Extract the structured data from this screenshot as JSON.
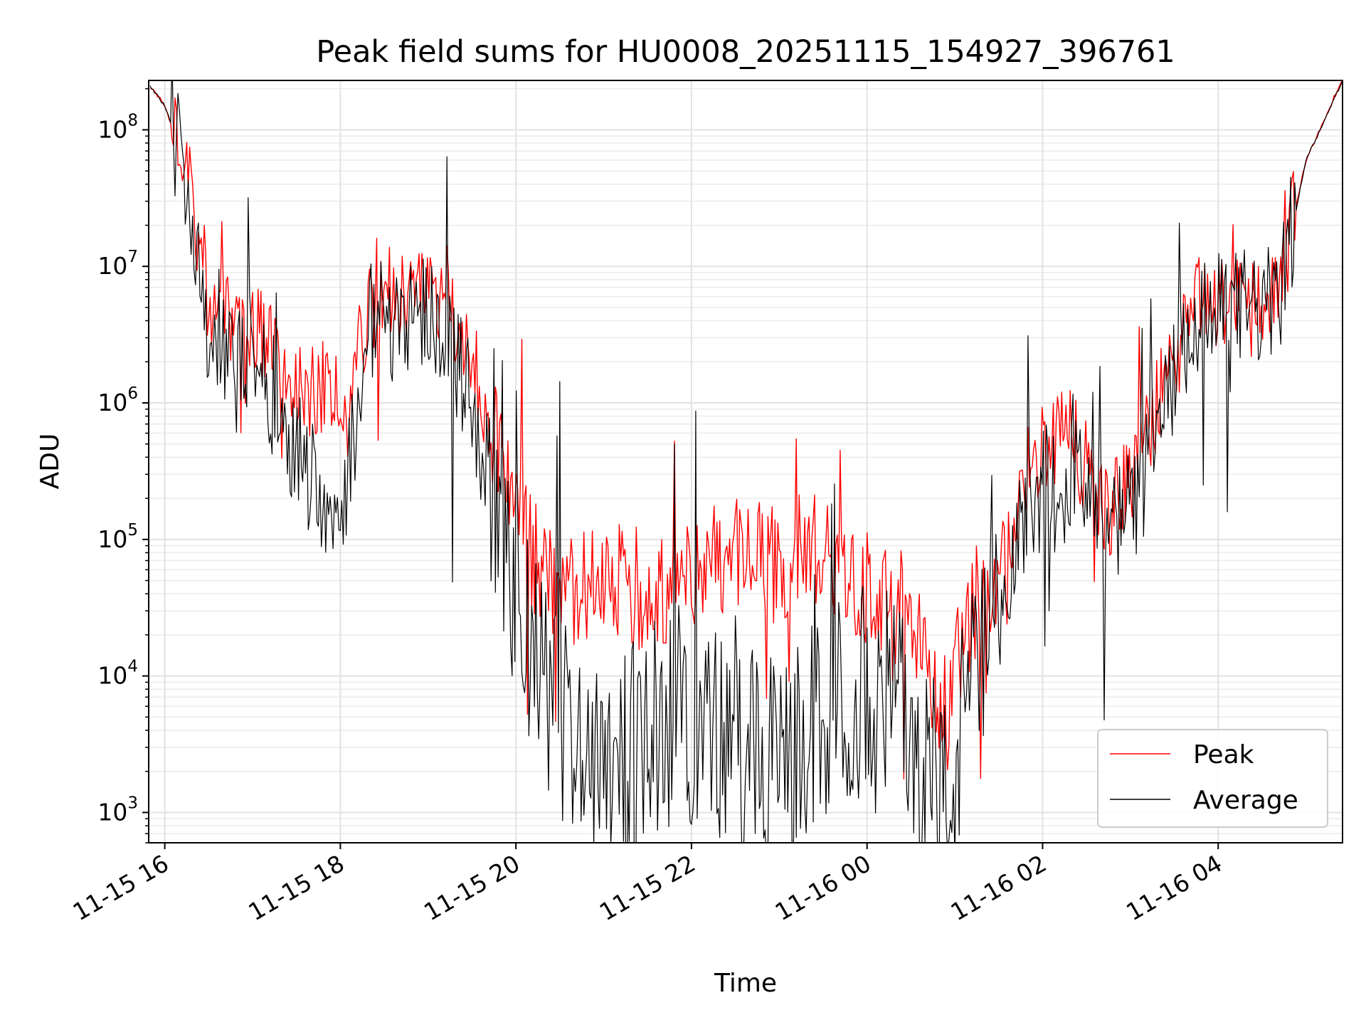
{
  "chart_data": {
    "type": "line",
    "title": "Peak field sums for HU0008_20251115_154927_396761",
    "xlabel": "Time",
    "ylabel": "ADU",
    "yscale": "log",
    "xlim": [
      "2025-11-15 15:49",
      "2025-11-16 05:25"
    ],
    "ylim": [
      600,
      230000000
    ],
    "x_ticks": [
      "11-15 16",
      "11-15 18",
      "11-15 20",
      "11-15 22",
      "11-16 00",
      "11-16 02",
      "11-16 04"
    ],
    "y_ticks": [
      {
        "base": "10",
        "exp": "3",
        "value": 1000
      },
      {
        "base": "10",
        "exp": "4",
        "value": 10000
      },
      {
        "base": "10",
        "exp": "5",
        "value": 100000
      },
      {
        "base": "10",
        "exp": "6",
        "value": 1000000
      },
      {
        "base": "10",
        "exp": "7",
        "value": 10000000
      },
      {
        "base": "10",
        "exp": "8",
        "value": 100000000
      }
    ],
    "grid": true,
    "legend_position": "lower-right",
    "series": [
      {
        "name": "Peak",
        "color": "#ff0000",
        "x": [
          "2025-11-15 15:50",
          "2025-11-15 16:00",
          "2025-11-15 16:15",
          "2025-11-15 16:20",
          "2025-11-15 16:30",
          "2025-11-15 16:45",
          "2025-11-15 17:00",
          "2025-11-15 17:20",
          "2025-11-15 17:40",
          "2025-11-15 17:55",
          "2025-11-15 18:05",
          "2025-11-15 18:20",
          "2025-11-15 18:50",
          "2025-11-15 19:10",
          "2025-11-15 19:30",
          "2025-11-15 19:45",
          "2025-11-15 20:05",
          "2025-11-15 20:30",
          "2025-11-15 21:00",
          "2025-11-15 21:30",
          "2025-11-15 22:00",
          "2025-11-15 22:30",
          "2025-11-15 23:00",
          "2025-11-15 23:30",
          "2025-11-16 00:00",
          "2025-11-16 00:30",
          "2025-11-16 00:55",
          "2025-11-16 01:10",
          "2025-11-16 01:30",
          "2025-11-16 01:50",
          "2025-11-16 02:15",
          "2025-11-16 02:45",
          "2025-11-16 03:05",
          "2025-11-16 03:20",
          "2025-11-16 03:45",
          "2025-11-16 04:15",
          "2025-11-16 04:40",
          "2025-11-16 05:00",
          "2025-11-16 05:25"
        ],
        "values": [
          210000000,
          150000000,
          50000000,
          24000000,
          6000000,
          3500000,
          4000000,
          2000000,
          1200000,
          1500000,
          1000000,
          5500000,
          6000000,
          5000000,
          2000000,
          600000,
          100000,
          30000,
          60000,
          40000,
          50000,
          80000,
          60000,
          100000,
          40000,
          30000,
          5000,
          30000,
          50000,
          300000,
          700000,
          150000,
          350000,
          1100000,
          5000000,
          6000000,
          6000000,
          60000000,
          230000000
        ]
      },
      {
        "name": "Average",
        "color": "#000000",
        "x": [
          "2025-11-15 15:50",
          "2025-11-15 16:00",
          "2025-11-15 16:15",
          "2025-11-15 16:20",
          "2025-11-15 16:30",
          "2025-11-15 16:45",
          "2025-11-15 17:00",
          "2025-11-15 17:20",
          "2025-11-15 17:40",
          "2025-11-15 17:55",
          "2025-11-15 18:05",
          "2025-11-15 18:20",
          "2025-11-15 18:50",
          "2025-11-15 19:10",
          "2025-11-15 19:30",
          "2025-11-15 19:45",
          "2025-11-15 20:05",
          "2025-11-15 20:30",
          "2025-11-15 21:00",
          "2025-11-15 21:30",
          "2025-11-15 22:00",
          "2025-11-15 22:30",
          "2025-11-15 23:00",
          "2025-11-15 23:30",
          "2025-11-16 00:00",
          "2025-11-16 00:30",
          "2025-11-16 00:55",
          "2025-11-16 01:10",
          "2025-11-16 01:30",
          "2025-11-16 01:50",
          "2025-11-16 02:15",
          "2025-11-16 02:45",
          "2025-11-16 03:05",
          "2025-11-16 03:20",
          "2025-11-16 03:45",
          "2025-11-16 04:15",
          "2025-11-16 04:40",
          "2025-11-16 05:00",
          "2025-11-16 05:25"
        ],
        "values": [
          210000000,
          150000000,
          50000000,
          24000000,
          3000000,
          2000000,
          2500000,
          800000,
          300000,
          150000,
          300000,
          4000000,
          5000000,
          4000000,
          1000000,
          200000,
          20000,
          5000,
          3000,
          4000,
          5000,
          3000,
          2000,
          5000,
          8000,
          6000,
          1000,
          8000,
          20000,
          200000,
          400000,
          100000,
          200000,
          700000,
          4000000,
          5000000,
          5000000,
          60000000,
          230000000
        ]
      }
    ]
  }
}
